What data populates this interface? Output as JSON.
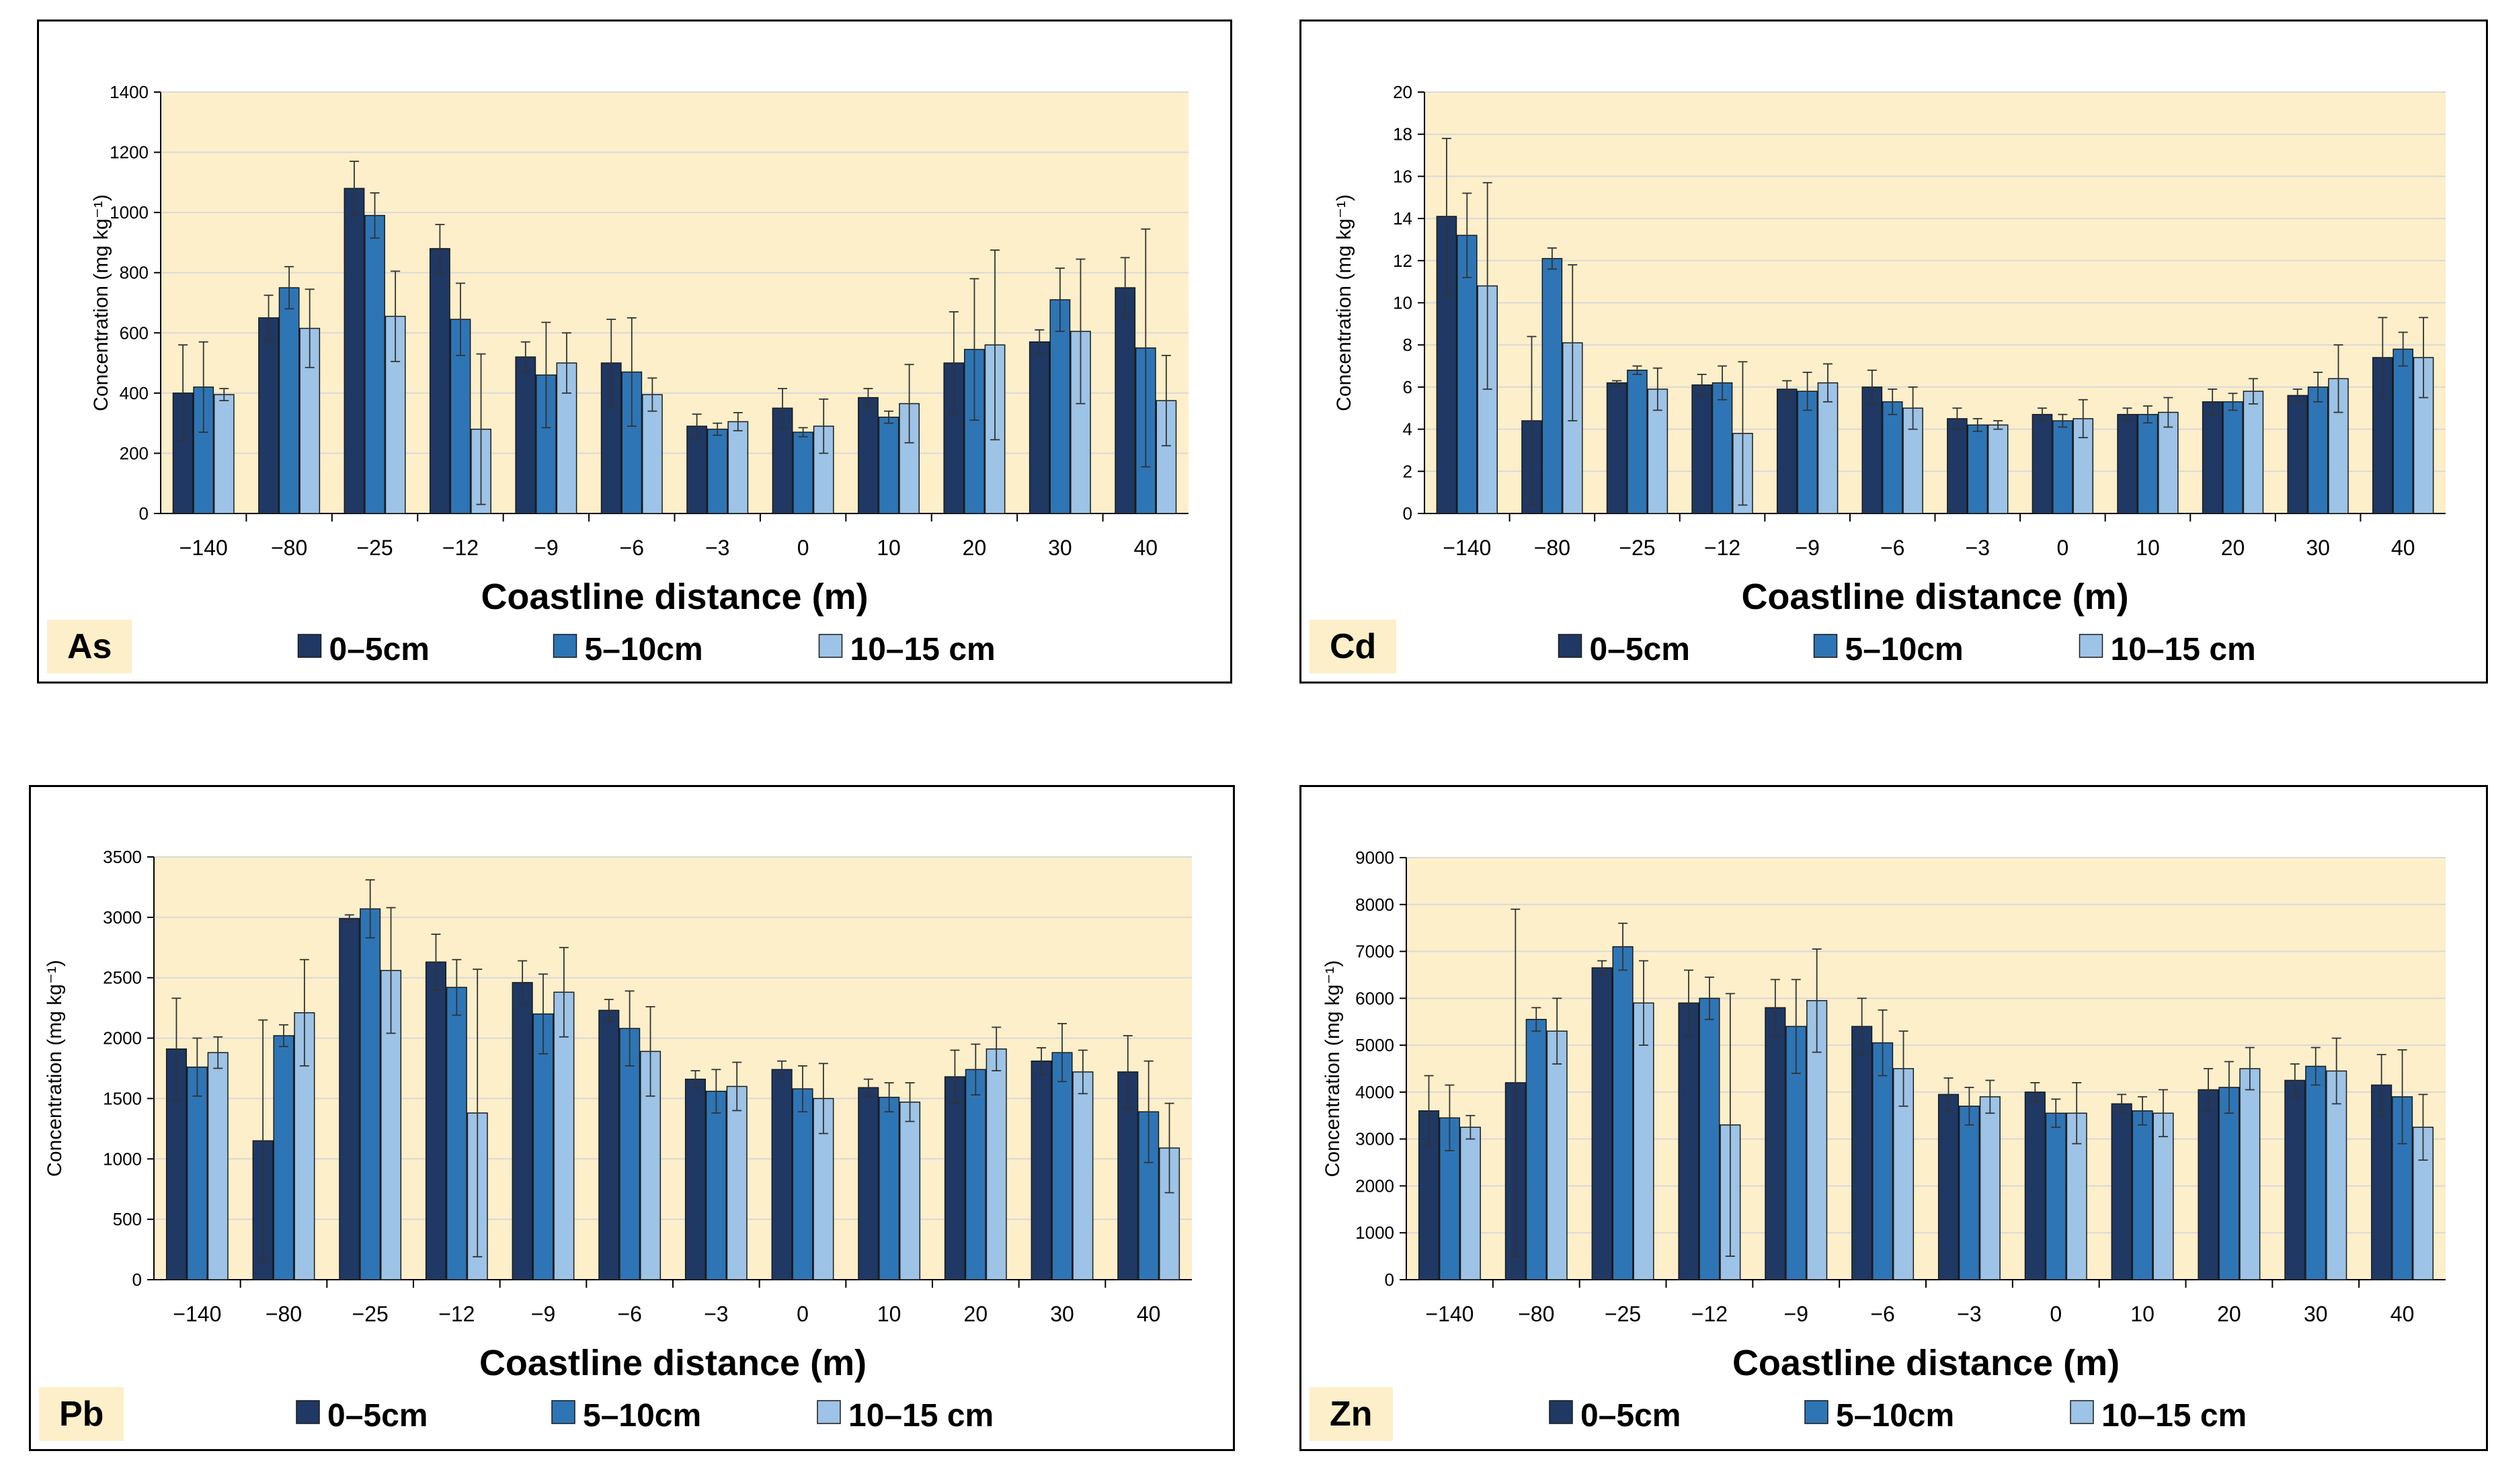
{
  "colors": {
    "plot_bg": "#fdefc9",
    "s1": "#1f3864",
    "s2": "#2e75b6",
    "s3": "#9dc3e6",
    "grid": "#d9d9d9"
  },
  "chart_data": [
    {
      "type": "bar",
      "element": "As",
      "xlabel": "Coastline distance (m)",
      "ylabel": "Concentration (mg kg⁻¹)",
      "ylim": [
        0,
        1400
      ],
      "ticks": [
        "0",
        "200",
        "400",
        "600",
        "800",
        "1000",
        "1200",
        "1400"
      ],
      "categories": [
        "−140",
        "−80",
        "−25",
        "−12",
        "−9",
        "−6",
        "−3",
        "0",
        "10",
        "20",
        "30",
        "40"
      ],
      "series": [
        {
          "name": "0–5cm",
          "values": [
            400,
            650,
            1080,
            880,
            520,
            500,
            290,
            350,
            385,
            500,
            570,
            750
          ],
          "errors": [
            160,
            75,
            90,
            80,
            50,
            145,
            40,
            65,
            30,
            170,
            40,
            100
          ]
        },
        {
          "name": "5–10cm",
          "values": [
            420,
            750,
            990,
            645,
            460,
            470,
            280,
            270,
            320,
            545,
            710,
            550
          ],
          "errors": [
            150,
            70,
            75,
            120,
            175,
            180,
            20,
            15,
            20,
            235,
            105,
            395
          ]
        },
        {
          "name": "10–15 cm",
          "values": [
            395,
            615,
            655,
            280,
            500,
            395,
            305,
            290,
            365,
            560,
            605,
            375
          ],
          "errors": [
            20,
            130,
            150,
            250,
            100,
            55,
            30,
            90,
            130,
            315,
            240,
            150
          ]
        }
      ]
    },
    {
      "type": "bar",
      "element": "Cd",
      "xlabel": "Coastline distance (m)",
      "ylabel": "Concentration (mg kg⁻¹)",
      "ylim": [
        0,
        20
      ],
      "ticks": [
        "0",
        "2",
        "4",
        "6",
        "8",
        "10",
        "12",
        "14",
        "16",
        "18",
        "20"
      ],
      "categories": [
        "−140",
        "−80",
        "−25",
        "−12",
        "−9",
        "−6",
        "−3",
        "0",
        "10",
        "20",
        "30",
        "40"
      ],
      "series": [
        {
          "name": "0–5cm",
          "values": [
            14.1,
            4.4,
            6.2,
            6.1,
            5.9,
            6.0,
            4.5,
            4.7,
            4.7,
            5.3,
            5.6,
            7.4
          ],
          "errors": [
            3.7,
            4.0,
            0.1,
            0.5,
            0.4,
            0.8,
            0.5,
            0.3,
            0.3,
            0.6,
            0.3,
            1.9
          ]
        },
        {
          "name": "5–10cm",
          "values": [
            13.2,
            12.1,
            6.8,
            6.2,
            5.8,
            5.3,
            4.2,
            4.4,
            4.7,
            5.3,
            6.0,
            7.8
          ],
          "errors": [
            2.0,
            0.5,
            0.2,
            0.8,
            0.9,
            0.6,
            0.3,
            0.3,
            0.4,
            0.4,
            0.7,
            0.8
          ]
        },
        {
          "name": "10–15 cm",
          "values": [
            10.8,
            8.1,
            5.9,
            3.8,
            6.2,
            5.0,
            4.2,
            4.5,
            4.8,
            5.8,
            6.4,
            7.4
          ],
          "errors": [
            4.9,
            3.7,
            1.0,
            3.4,
            0.9,
            1.0,
            0.2,
            0.9,
            0.7,
            0.6,
            1.6,
            1.9
          ]
        }
      ]
    },
    {
      "type": "bar",
      "element": "Pb",
      "xlabel": "Coastline distance (m)",
      "ylabel": "Concentration (mg kg⁻¹)",
      "ylim": [
        0,
        3500
      ],
      "ticks": [
        "0",
        "500",
        "1000",
        "1500",
        "2000",
        "2500",
        "3000",
        "3500"
      ],
      "categories": [
        "−140",
        "−80",
        "−25",
        "−12",
        "−9",
        "−6",
        "−3",
        "0",
        "10",
        "20",
        "30",
        "40"
      ],
      "series": [
        {
          "name": "0–5cm",
          "values": [
            1910,
            1150,
            2990,
            2630,
            2460,
            2230,
            1660,
            1740,
            1590,
            1680,
            1810,
            1720
          ],
          "errors": [
            420,
            1000,
            30,
            230,
            180,
            90,
            70,
            70,
            70,
            220,
            110,
            300
          ]
        },
        {
          "name": "5–10cm",
          "values": [
            1760,
            2020,
            3070,
            2420,
            2200,
            2080,
            1560,
            1580,
            1510,
            1740,
            1880,
            1390
          ],
          "errors": [
            240,
            90,
            240,
            230,
            330,
            310,
            180,
            190,
            120,
            210,
            240,
            420
          ]
        },
        {
          "name": "10–15 cm",
          "values": [
            1880,
            2210,
            2560,
            1380,
            2380,
            1890,
            1600,
            1500,
            1470,
            1910,
            1720,
            1090
          ],
          "errors": [
            130,
            440,
            520,
            1190,
            370,
            370,
            200,
            290,
            160,
            180,
            180,
            370
          ]
        }
      ]
    },
    {
      "type": "bar",
      "element": "Zn",
      "xlabel": "Coastline distance (m)",
      "ylabel": "Concentration (mg kg⁻¹)",
      "ylim": [
        0,
        9000
      ],
      "ticks": [
        "0",
        "1000",
        "2000",
        "3000",
        "4000",
        "5000",
        "6000",
        "7000",
        "8000",
        "9000"
      ],
      "categories": [
        "−140",
        "−80",
        "−25",
        "−12",
        "−9",
        "−6",
        "−3",
        "0",
        "10",
        "20",
        "30",
        "40"
      ],
      "series": [
        {
          "name": "0–5cm",
          "values": [
            3600,
            4200,
            6650,
            5900,
            5800,
            5400,
            3950,
            4000,
            3750,
            4050,
            4250,
            4150
          ],
          "errors": [
            750,
            3700,
            150,
            700,
            600,
            600,
            350,
            200,
            200,
            450,
            350,
            650
          ]
        },
        {
          "name": "5–10cm",
          "values": [
            3450,
            5550,
            7100,
            6000,
            5400,
            5050,
            3700,
            3550,
            3600,
            4100,
            4550,
            3900
          ],
          "errors": [
            700,
            250,
            500,
            450,
            1000,
            700,
            400,
            300,
            300,
            550,
            400,
            1000
          ]
        },
        {
          "name": "10–15 cm",
          "values": [
            3250,
            5300,
            5900,
            3300,
            5950,
            4500,
            3900,
            3550,
            3550,
            4500,
            4450,
            3250
          ],
          "errors": [
            250,
            700,
            900,
            2800,
            1100,
            800,
            350,
            650,
            500,
            450,
            700,
            700
          ]
        }
      ]
    }
  ]
}
